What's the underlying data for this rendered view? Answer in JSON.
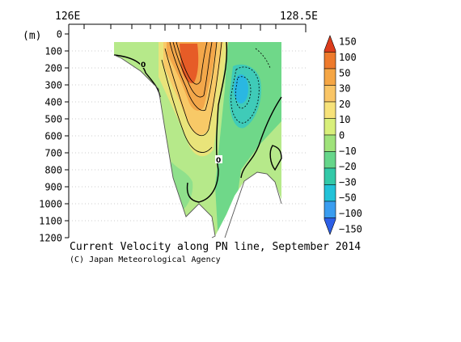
{
  "chart_data": {
    "type": "heatmap",
    "title": "Current Velocity along PN line, September 2014",
    "credit": "(C) Japan Meteorological Agency",
    "ylabel": "(m)",
    "x_top_labels": [
      "126E",
      "128.5E"
    ],
    "y_ticks": [
      0,
      100,
      200,
      300,
      400,
      500,
      600,
      700,
      800,
      900,
      1000,
      1100,
      1200
    ],
    "ylim": [
      0,
      1200
    ],
    "y_inverted": true,
    "grid": "dotted",
    "colorbar": {
      "labels": [
        "150",
        "100",
        "50",
        "30",
        "20",
        "10",
        "0",
        "−10",
        "−20",
        "−30",
        "−50",
        "−100",
        "−150"
      ],
      "colors": [
        "#dc3c1c",
        "#ee7a2c",
        "#f5a645",
        "#f9c566",
        "#f7e27a",
        "#d8ef7a",
        "#9fe27a",
        "#66d68a",
        "#33c9a8",
        "#22c2d8",
        "#3a9df0",
        "#2d5fe6"
      ]
    },
    "contour_labels": [
      "0",
      "0"
    ]
  }
}
